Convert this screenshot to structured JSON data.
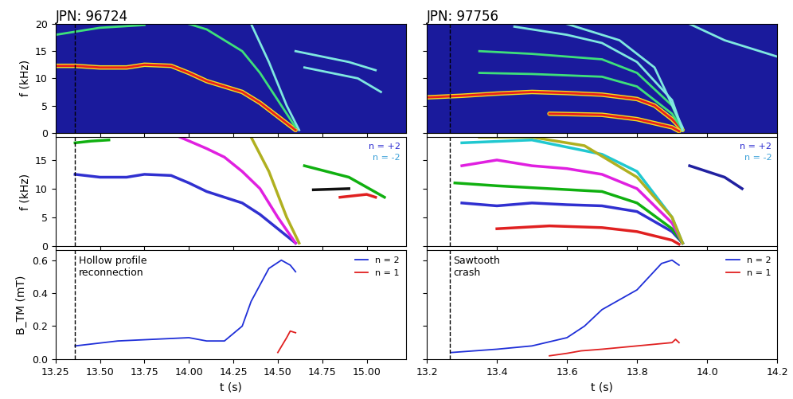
{
  "chart_data": [
    {
      "type": "line",
      "title": "JPN: 96724",
      "ylabel": "f (kHz)",
      "xlim": [
        13.25,
        15.22
      ],
      "ylim": [
        0,
        20
      ],
      "xticks": [
        13.25,
        {
          "value": 13.5,
          "label": "13.50"
        },
        13.75,
        {
          "value": 14.0,
          "label": "14.00"
        },
        14.25,
        {
          "value": 14.5,
          "label": "14.50"
        },
        14.75,
        {
          "value": 15.0,
          "label": "15.00"
        }
      ],
      "yticks": [
        0,
        5,
        10,
        15,
        20
      ],
      "tick_labels": "y",
      "event_time": 13.36,
      "series": [
        {
          "color": "#e8201c",
          "x": [
            13.25,
            13.36,
            13.5,
            13.65,
            13.75,
            13.9,
            14.0,
            14.1,
            14.2,
            14.3,
            14.4,
            14.5,
            14.6
          ],
          "values": [
            12.3,
            12.3,
            12.0,
            12.0,
            12.5,
            12.3,
            11.0,
            9.5,
            8.5,
            7.5,
            5.5,
            3.0,
            0.5
          ]
        },
        {
          "color": "#3ee07a",
          "x": [
            13.25,
            13.5,
            13.75
          ],
          "values": [
            18.0,
            19.3,
            19.8
          ]
        },
        {
          "color": "#3ee07a",
          "x": [
            14.0,
            14.1,
            14.2,
            14.3,
            14.4,
            14.5,
            14.6
          ],
          "values": [
            20.0,
            19.0,
            17.0,
            15.0,
            11.0,
            6.0,
            1.0
          ]
        },
        {
          "color": "#7fe8e0",
          "x": [
            14.35,
            14.45,
            14.55,
            14.62
          ],
          "values": [
            20.0,
            13.0,
            5.0,
            0.5
          ]
        },
        {
          "color": "#7fe8e0",
          "x": [
            14.6,
            14.75,
            14.9,
            15.05
          ],
          "values": [
            15.0,
            14.0,
            13.0,
            11.5
          ]
        },
        {
          "color": "#7fe8e0",
          "x": [
            14.65,
            14.8,
            14.95,
            15.08
          ],
          "values": [
            12.0,
            11.0,
            10.0,
            7.5
          ]
        }
      ]
    },
    {
      "type": "line",
      "ylabel": "f (kHz)",
      "xlim": [
        13.25,
        15.22
      ],
      "ylim": [
        0,
        19
      ],
      "xticks": [
        13.25,
        {
          "value": 13.5,
          "label": "13.50"
        },
        13.75,
        {
          "value": 14.0,
          "label": "14.00"
        },
        14.25,
        {
          "value": 14.5,
          "label": "14.50"
        },
        14.75,
        {
          "value": 15.0,
          "label": "15.00"
        }
      ],
      "yticks": [
        0,
        5,
        10,
        15
      ],
      "tick_labels": "y",
      "event_time": 13.36,
      "annotations": [
        {
          "text": "n = +2",
          "color": "#2b2bd0"
        },
        {
          "text": "n = -2",
          "color": "#3aa0d8"
        }
      ],
      "series": [
        {
          "color": "#3030d0",
          "x": [
            13.36,
            13.5,
            13.65,
            13.75,
            13.9,
            14.0,
            14.1,
            14.2,
            14.3,
            14.4,
            14.5,
            14.6
          ],
          "values": [
            12.5,
            12.0,
            12.0,
            12.5,
            12.3,
            11.0,
            9.5,
            8.5,
            7.5,
            5.5,
            3.0,
            0.5
          ]
        },
        {
          "color": "#10b010",
          "x": [
            13.36,
            13.45,
            13.55
          ],
          "values": [
            18.0,
            18.3,
            18.5
          ]
        },
        {
          "color": "#e020e0",
          "x": [
            13.95,
            14.1,
            14.2,
            14.3,
            14.4,
            14.5,
            14.6
          ],
          "values": [
            19.0,
            17.0,
            15.5,
            13.0,
            10.0,
            5.0,
            0.5
          ]
        },
        {
          "color": "#b0b020",
          "x": [
            14.35,
            14.45,
            14.55,
            14.62
          ],
          "values": [
            19.0,
            13.0,
            5.0,
            0.5
          ]
        },
        {
          "color": "#10b010",
          "x": [
            14.65,
            14.9,
            15.1
          ],
          "values": [
            14.0,
            12.0,
            8.5
          ]
        },
        {
          "color": "#101010",
          "x": [
            14.7,
            14.9
          ],
          "values": [
            9.8,
            10.0
          ]
        },
        {
          "color": "#e02020",
          "x": [
            14.85,
            15.0,
            15.05
          ],
          "values": [
            8.5,
            9.0,
            8.5
          ]
        }
      ]
    },
    {
      "type": "line",
      "ylabel": "B_TM (mT)",
      "xlabel": "t (s)",
      "xlim": [
        13.25,
        15.22
      ],
      "ylim": [
        0,
        0.66
      ],
      "xticks": [
        13.25,
        {
          "value": 13.5,
          "label": "13.50"
        },
        13.75,
        {
          "value": 14.0,
          "label": "14.00"
        },
        14.25,
        {
          "value": 14.5,
          "label": "14.50"
        },
        14.75,
        {
          "value": 15.0,
          "label": "15.00"
        }
      ],
      "yticks": [
        {
          "value": 0,
          "label": "0.0"
        },
        0.2,
        0.4,
        0.6
      ],
      "event_time": 13.36,
      "legend": "upper right",
      "annotations": [
        {
          "text": "Hollow profile\nreconnection"
        }
      ],
      "series": [
        {
          "name": "n = 2",
          "color": "#1f2fd8",
          "x": [
            13.36,
            13.4,
            13.6,
            13.8,
            14.0,
            14.1,
            14.2,
            14.3,
            14.35,
            14.45,
            14.52,
            14.57,
            14.6
          ],
          "values": [
            0.08,
            0.085,
            0.11,
            0.12,
            0.13,
            0.11,
            0.11,
            0.2,
            0.35,
            0.55,
            0.6,
            0.57,
            0.53
          ]
        },
        {
          "name": "n = 1",
          "color": "#e02020",
          "x": [
            14.5,
            14.55,
            14.57,
            14.6
          ],
          "values": [
            0.04,
            0.13,
            0.17,
            0.16
          ]
        }
      ]
    },
    {
      "type": "line",
      "title": "JPN: 97756",
      "xlim": [
        13.2,
        14.2
      ],
      "ylim": [
        0,
        20
      ],
      "xticks": [
        13.2,
        13.4,
        13.6,
        13.8,
        {
          "value": 14.0,
          "label": "14.0"
        },
        14.2
      ],
      "yticks": [
        0,
        5,
        10,
        15,
        20
      ],
      "tick_labels": false,
      "event_time": 13.265,
      "series": [
        {
          "color": "#e8201c",
          "x": [
            13.2,
            13.3,
            13.4,
            13.5,
            13.6,
            13.7,
            13.8,
            13.85,
            13.9,
            13.93
          ],
          "values": [
            6.5,
            6.8,
            7.2,
            7.5,
            7.3,
            7.0,
            6.2,
            5.0,
            2.5,
            0.5
          ]
        },
        {
          "color": "#e8201c",
          "x": [
            13.55,
            13.7,
            13.8,
            13.9,
            13.92
          ],
          "values": [
            3.5,
            3.3,
            2.5,
            1.0,
            0.3
          ]
        },
        {
          "color": "#3ee07a",
          "x": [
            13.35,
            13.5,
            13.7,
            13.8,
            13.9,
            13.93
          ],
          "values": [
            11.0,
            10.8,
            10.3,
            8.5,
            3.5,
            0.5
          ]
        },
        {
          "color": "#3ee07a",
          "x": [
            13.35,
            13.5,
            13.7,
            13.8,
            13.9,
            13.93
          ],
          "values": [
            15.0,
            14.5,
            13.5,
            11.0,
            5.0,
            0.5
          ]
        },
        {
          "color": "#7fe8e0",
          "x": [
            13.45,
            13.6,
            13.7,
            13.8,
            13.9,
            13.93
          ],
          "values": [
            19.5,
            18.0,
            16.5,
            13.0,
            6.0,
            0.5
          ]
        },
        {
          "color": "#7fe8e0",
          "x": [
            13.6,
            13.75,
            13.85,
            13.93
          ],
          "values": [
            20.0,
            17.0,
            12.0,
            1.0
          ]
        },
        {
          "color": "#7fe8e0",
          "x": [
            13.95,
            14.05,
            14.15,
            14.2
          ],
          "values": [
            20.0,
            17.0,
            15.0,
            14.0
          ]
        }
      ]
    },
    {
      "type": "line",
      "xlim": [
        13.2,
        14.2
      ],
      "ylim": [
        0,
        19
      ],
      "xticks": [
        13.2,
        13.4,
        13.6,
        13.8,
        {
          "value": 14.0,
          "label": "14.0"
        },
        14.2
      ],
      "yticks": [
        0,
        5,
        10,
        15
      ],
      "tick_labels": false,
      "event_time": 13.265,
      "annotations": [
        {
          "text": "n = +2",
          "color": "#2b2bd0"
        },
        {
          "text": "n = -2",
          "color": "#3aa0d8"
        }
      ],
      "series": [
        {
          "color": "#3030d0",
          "x": [
            13.3,
            13.4,
            13.5,
            13.6,
            13.7,
            13.8,
            13.9,
            13.93
          ],
          "values": [
            7.5,
            7.0,
            7.5,
            7.2,
            7.0,
            6.0,
            2.5,
            0.5
          ]
        },
        {
          "color": "#e02020",
          "x": [
            13.4,
            13.55,
            13.7,
            13.8,
            13.9,
            13.92
          ],
          "values": [
            3.0,
            3.5,
            3.2,
            2.5,
            1.0,
            0.3
          ]
        },
        {
          "color": "#10b010",
          "x": [
            13.28,
            13.4,
            13.55,
            13.7,
            13.8,
            13.9,
            13.93
          ],
          "values": [
            11.0,
            10.5,
            10.0,
            9.5,
            7.5,
            3.0,
            0.5
          ]
        },
        {
          "color": "#e020e0",
          "x": [
            13.3,
            13.4,
            13.5,
            13.6,
            13.7,
            13.8,
            13.9,
            13.93
          ],
          "values": [
            14.0,
            15.0,
            14.0,
            13.5,
            12.5,
            10.0,
            4.0,
            0.5
          ]
        },
        {
          "color": "#20c8d0",
          "x": [
            13.3,
            13.5,
            13.7,
            13.8,
            13.9,
            13.93
          ],
          "values": [
            18.0,
            18.5,
            16.0,
            13.0,
            5.0,
            0.5
          ]
        },
        {
          "color": "#b0b020",
          "x": [
            13.35,
            13.5,
            13.65,
            13.8,
            13.9,
            13.93
          ],
          "values": [
            19.0,
            19.0,
            17.5,
            12.0,
            5.0,
            0.5
          ]
        },
        {
          "color": "#2020a0",
          "x": [
            13.95,
            14.05,
            14.1
          ],
          "values": [
            14.0,
            12.0,
            10.0
          ]
        }
      ]
    },
    {
      "type": "line",
      "xlabel": "t (s)",
      "xlim": [
        13.2,
        14.2
      ],
      "ylim": [
        0,
        0.66
      ],
      "xticks": [
        13.2,
        13.4,
        13.6,
        13.8,
        {
          "value": 14.0,
          "label": "14.0"
        },
        14.2
      ],
      "yticks": [
        {
          "value": 0,
          "label": "0.0"
        },
        0.2,
        0.4,
        0.6
      ],
      "tick_labels": "x",
      "event_time": 13.265,
      "legend": "upper right",
      "annotations": [
        {
          "text": "Sawtooth\ncrash"
        }
      ],
      "series": [
        {
          "name": "n = 2",
          "color": "#1f2fd8",
          "x": [
            13.27,
            13.4,
            13.5,
            13.6,
            13.65,
            13.7,
            13.8,
            13.87,
            13.9,
            13.92
          ],
          "values": [
            0.04,
            0.06,
            0.08,
            0.13,
            0.2,
            0.3,
            0.42,
            0.58,
            0.6,
            0.57
          ]
        },
        {
          "name": "n = 1",
          "color": "#e02020",
          "x": [
            13.55,
            13.6,
            13.64,
            13.7,
            13.8,
            13.9,
            13.91,
            13.92
          ],
          "values": [
            0.02,
            0.035,
            0.05,
            0.06,
            0.08,
            0.1,
            0.12,
            0.1
          ]
        }
      ]
    }
  ]
}
